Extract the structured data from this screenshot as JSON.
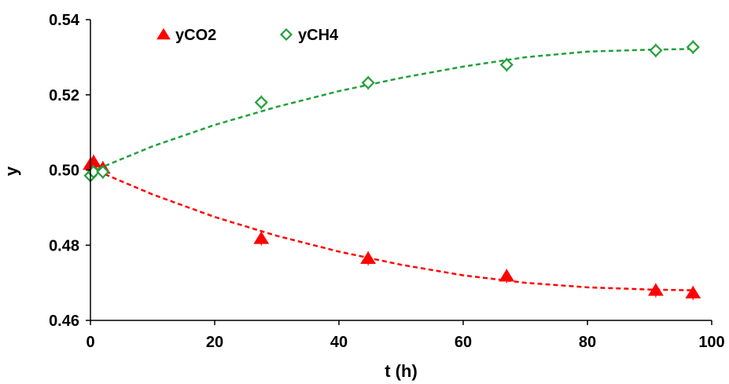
{
  "chart_data": {
    "type": "scatter",
    "xlabel": "t (h)",
    "ylabel": "y",
    "xlim": [
      0,
      100
    ],
    "ylim": [
      0.46,
      0.54
    ],
    "x_ticks": [
      "0",
      "20",
      "40",
      "60",
      "80",
      "100"
    ],
    "y_ticks": [
      "0.46",
      "0.48",
      "0.50",
      "0.52",
      "0.54"
    ],
    "grid": false,
    "legend_position": "top-left",
    "series": [
      {
        "name": "yCO2",
        "marker": "filled-triangle",
        "color": "#ff0000",
        "points": [
          {
            "x": 0,
            "y": 0.5015
          },
          {
            "x": 0.5,
            "y": 0.5022
          },
          {
            "x": 2,
            "y": 0.5005
          },
          {
            "x": 27.5,
            "y": 0.4818
          },
          {
            "x": 44.7,
            "y": 0.4765
          },
          {
            "x": 67,
            "y": 0.4718
          },
          {
            "x": 91,
            "y": 0.468
          },
          {
            "x": 97,
            "y": 0.4673
          }
        ],
        "fit": [
          {
            "x": 0,
            "y": 0.5005
          },
          {
            "x": 10,
            "y": 0.4935
          },
          {
            "x": 20,
            "y": 0.4875
          },
          {
            "x": 30,
            "y": 0.4825
          },
          {
            "x": 40,
            "y": 0.4783
          },
          {
            "x": 50,
            "y": 0.4748
          },
          {
            "x": 60,
            "y": 0.472
          },
          {
            "x": 70,
            "y": 0.47
          },
          {
            "x": 80,
            "y": 0.4688
          },
          {
            "x": 90,
            "y": 0.4682
          },
          {
            "x": 97,
            "y": 0.468
          }
        ]
      },
      {
        "name": "yCH4",
        "marker": "open-diamond",
        "color": "#22a03a",
        "points": [
          {
            "x": 0,
            "y": 0.4985
          },
          {
            "x": 0.5,
            "y": 0.4995
          },
          {
            "x": 2,
            "y": 0.4995
          },
          {
            "x": 27.5,
            "y": 0.518
          },
          {
            "x": 44.7,
            "y": 0.5232
          },
          {
            "x": 67,
            "y": 0.528
          },
          {
            "x": 91,
            "y": 0.5318
          },
          {
            "x": 97,
            "y": 0.5327
          }
        ],
        "fit": [
          {
            "x": 0,
            "y": 0.4995
          },
          {
            "x": 10,
            "y": 0.5063
          },
          {
            "x": 20,
            "y": 0.512
          },
          {
            "x": 30,
            "y": 0.5168
          },
          {
            "x": 40,
            "y": 0.521
          },
          {
            "x": 50,
            "y": 0.5245
          },
          {
            "x": 60,
            "y": 0.5275
          },
          {
            "x": 70,
            "y": 0.53
          },
          {
            "x": 80,
            "y": 0.5315
          },
          {
            "x": 90,
            "y": 0.532
          },
          {
            "x": 97,
            "y": 0.5322
          }
        ]
      }
    ]
  }
}
